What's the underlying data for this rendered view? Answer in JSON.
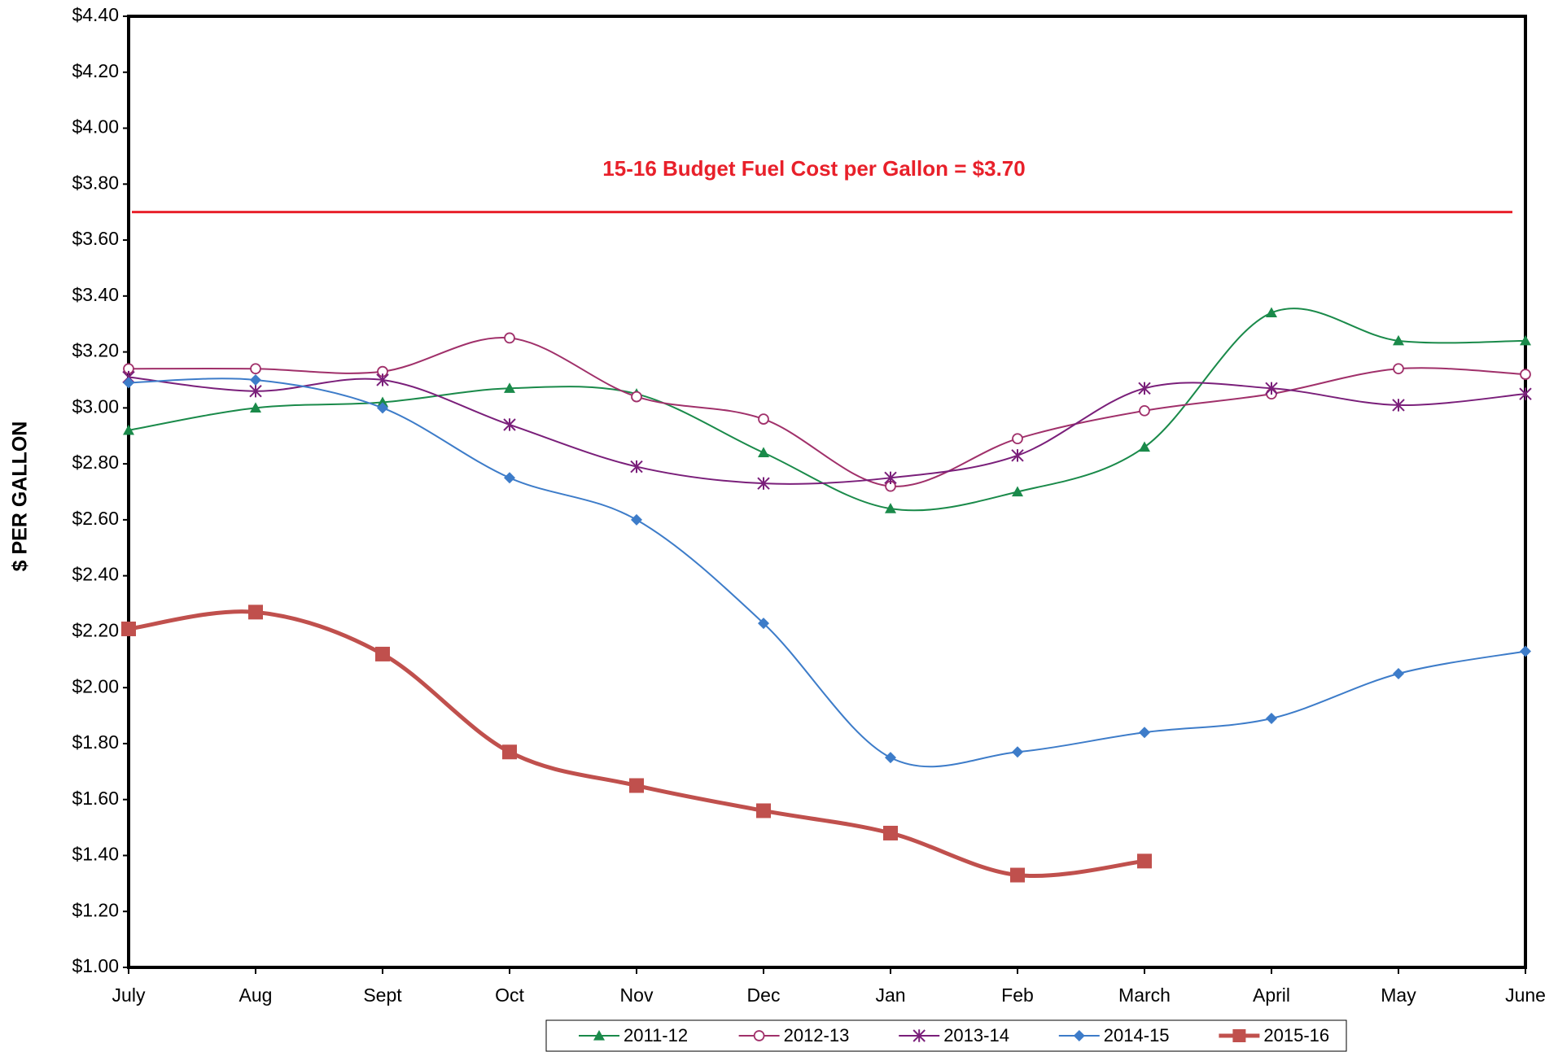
{
  "chart_data": {
    "type": "line",
    "y_label": "$ PER GALLON",
    "annotation": "15-16 Budget Fuel Cost per Gallon = $3.70",
    "reference_line": {
      "value": 3.7,
      "color": "#e8202a"
    },
    "categories": [
      "July",
      "Aug",
      "Sept",
      "Oct",
      "Nov",
      "Dec",
      "Jan",
      "Feb",
      "March",
      "April",
      "May",
      "June"
    ],
    "series": [
      {
        "name": "2011-12",
        "color": "#1a8a4a",
        "marker": "triangle",
        "values": [
          2.92,
          3.0,
          3.02,
          3.07,
          3.05,
          2.84,
          2.64,
          2.7,
          2.86,
          3.34,
          3.24,
          3.24
        ]
      },
      {
        "name": "2012-13",
        "color": "#a0306a",
        "marker": "circle",
        "values": [
          3.14,
          3.14,
          3.13,
          3.25,
          3.04,
          2.96,
          2.72,
          2.89,
          2.99,
          3.05,
          3.14,
          3.12
        ]
      },
      {
        "name": "2013-14",
        "color": "#7a1f7a",
        "marker": "star",
        "values": [
          3.11,
          3.06,
          3.1,
          2.94,
          2.79,
          2.73,
          2.75,
          2.83,
          3.07,
          3.07,
          3.01,
          3.05
        ]
      },
      {
        "name": "2014-15",
        "color": "#3d7cc9",
        "marker": "diamond",
        "values": [
          3.09,
          3.1,
          3.0,
          2.75,
          2.6,
          2.23,
          1.75,
          1.77,
          1.84,
          1.89,
          2.05,
          2.13
        ]
      },
      {
        "name": "2015-16",
        "color": "#c0504d",
        "marker": "square",
        "values": [
          2.21,
          2.27,
          2.12,
          1.77,
          1.65,
          1.56,
          1.48,
          1.33,
          1.38,
          null,
          null,
          null
        ]
      }
    ],
    "ylim": [
      1.0,
      4.4
    ],
    "yticks": [
      {
        "value": 1.0,
        "label": "$1.00"
      },
      {
        "value": 1.2,
        "label": "$1.20"
      },
      {
        "value": 1.4,
        "label": "$1.40"
      },
      {
        "value": 1.6,
        "label": "$1.60"
      },
      {
        "value": 1.8,
        "label": "$1.80"
      },
      {
        "value": 2.0,
        "label": "$2.00"
      },
      {
        "value": 2.2,
        "label": "$2.20"
      },
      {
        "value": 2.4,
        "label": "$2.40"
      },
      {
        "value": 2.6,
        "label": "$2.60"
      },
      {
        "value": 2.8,
        "label": "$2.80"
      },
      {
        "value": 3.0,
        "label": "$3.00"
      },
      {
        "value": 3.2,
        "label": "$3.20"
      },
      {
        "value": 3.4,
        "label": "$3.40"
      },
      {
        "value": 3.6,
        "label": "$3.60"
      },
      {
        "value": 3.8,
        "label": "$3.80"
      },
      {
        "value": 4.0,
        "label": "$4.00"
      },
      {
        "value": 4.2,
        "label": "$4.20"
      },
      {
        "value": 4.4,
        "label": "$4.40"
      }
    ],
    "grid": false,
    "legend": "bottom"
  }
}
